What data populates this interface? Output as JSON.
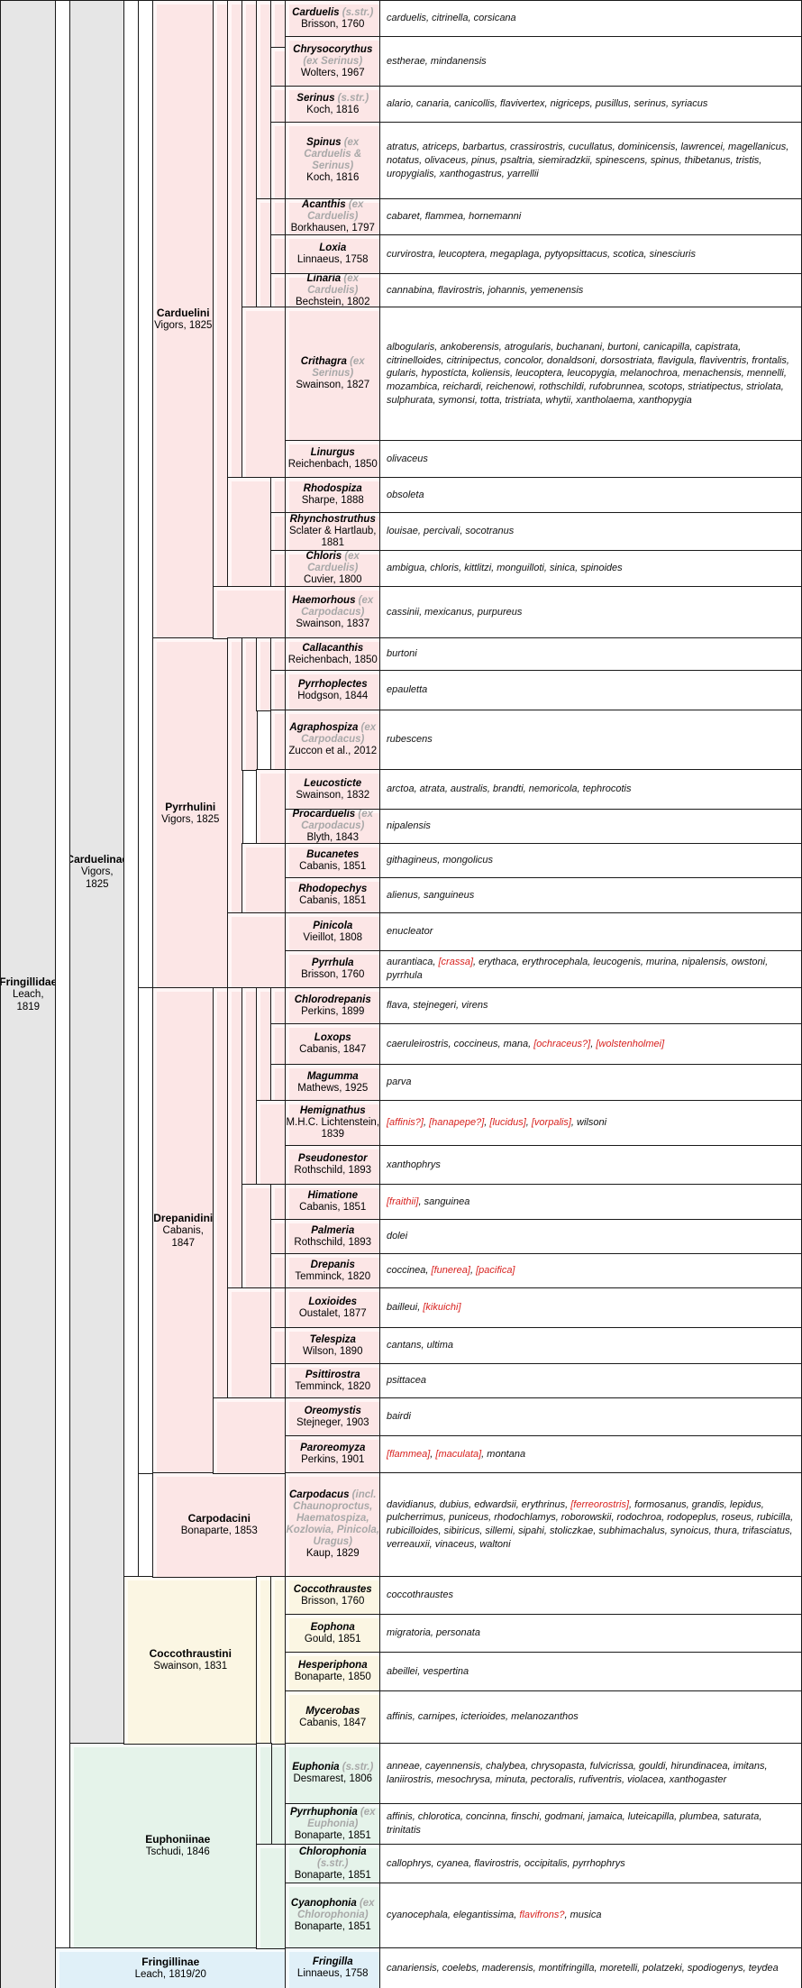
{
  "ranks": {
    "family": {
      "name": "Fringillidae",
      "authority": "Leach, 1819"
    },
    "subfamilies": [
      {
        "key": "carduelinae",
        "name": "Carduelinae",
        "authority": "Vigors, 1825"
      },
      {
        "key": "euphoniinae",
        "name": "Euphoniinae",
        "authority": "Tschudi, 1846"
      },
      {
        "key": "fringillinae",
        "name": "Fringillinae",
        "authority": "Leach, 1819/20"
      }
    ],
    "tribes": [
      {
        "key": "carduelini",
        "name": "Carduelini",
        "authority": "Vigors, 1825"
      },
      {
        "key": "pyrrhulini",
        "name": "Pyrrhulini",
        "authority": "Vigors, 1825"
      },
      {
        "key": "drepanidini",
        "name": "Drepanidini",
        "authority": "Cabanis, 1847"
      },
      {
        "key": "carpodacini",
        "name": "Carpodacini",
        "authority": "Bonaparte, 1853"
      },
      {
        "key": "coccothraustini",
        "name": "Coccothraustini",
        "authority": "Swainson, 1831"
      }
    ]
  },
  "genera": [
    {
      "name": "Carduelis",
      "note": "(s.str.)",
      "authority": "Brisson, 1760",
      "species": [
        {
          "text": "carduelis, citrinella, corsicana"
        }
      ]
    },
    {
      "name": "Chrysocorythus",
      "note": "(ex Serinus)",
      "authority": "Wolters, 1967",
      "species": [
        {
          "text": "estherae, mindanensis"
        }
      ]
    },
    {
      "name": "Serinus",
      "note": "(s.str.)",
      "authority": "Koch, 1816",
      "species": [
        {
          "text": "alario, canaria, canicollis, flavivertex, nigriceps, pusillus, serinus, syriacus"
        }
      ]
    },
    {
      "name": "Spinus",
      "note": "(ex Carduelis & Serinus)",
      "authority": "Koch, 1816",
      "species": [
        {
          "text": "atratus, atriceps, barbartus, crassirostris, cucullatus, dominicensis, lawrencei, magellanicus, notatus, olivaceus, pinus, psaltria, siemiradzkii, spinescens, spinus, thibetanus, tristis, uropygialis, xanthogastrus, yarrellii"
        }
      ]
    },
    {
      "name": "Acanthis",
      "note": "(ex Carduelis)",
      "authority": "Borkhausen, 1797",
      "species": [
        {
          "text": "cabaret, flammea, hornemanni"
        }
      ]
    },
    {
      "name": "Loxia",
      "note": "",
      "authority": "Linnaeus, 1758",
      "species": [
        {
          "text": "curvirostra, leucoptera, megaplaga, pytyopsittacus, scotica, sinesciuris"
        }
      ]
    },
    {
      "name": "Linaria",
      "note": "(ex Carduelis)",
      "authority": "Bechstein, 1802",
      "species": [
        {
          "text": "cannabina, flavirostris, johannis, yemenensis"
        }
      ]
    },
    {
      "name": "Crithagra",
      "note": "(ex Serinus)",
      "authority": "Swainson, 1827",
      "species": [
        {
          "text": "albogularis, ankoberensis, atrogularis, buchanani, burtoni, canicapilla, capistrata, citrinelloides, citrinipectus, concolor, donaldsoni, dorsostriata, flavigula, flaviventris, frontalis, gularis, hypostícta, koliensis, leucoptera, leucopygia, melanochroa, menachensis, mennelli, mozambica, reichardi, reichenowi, rothschildi, rufobrunnea, scotops, striatipectus, striolata, sulphurata, symonsi, totta, tristriata, whytii, xantholaema, xanthopygia"
        }
      ]
    },
    {
      "name": "Linurgus",
      "note": "",
      "authority": "Reichenbach, 1850",
      "species": [
        {
          "text": "olivaceus"
        }
      ]
    },
    {
      "name": "Rhodospiza",
      "note": "",
      "authority": "Sharpe, 1888",
      "species": [
        {
          "text": "obsoleta"
        }
      ]
    },
    {
      "name": "Rhynchostruthus",
      "note": "",
      "authority": "Sclater & Hartlaub, 1881",
      "species": [
        {
          "text": "louisae, percivali, socotranus"
        }
      ]
    },
    {
      "name": "Chloris",
      "note": "(ex Carduelis)",
      "authority": "Cuvier, 1800",
      "species": [
        {
          "text": "ambigua, chloris, kittlitzi, monguilloti, sinica, spinoides"
        }
      ]
    },
    {
      "name": "Haemorhous",
      "note": "(ex Carpodacus)",
      "authority": "Swainson, 1837",
      "species": [
        {
          "text": "cassinii, mexicanus, purpureus"
        }
      ]
    },
    {
      "name": "Callacanthis",
      "note": "",
      "authority": "Reichenbach, 1850",
      "species": [
        {
          "text": "burtoni"
        }
      ]
    },
    {
      "name": "Pyrrhoplectes",
      "note": "",
      "authority": "Hodgson, 1844",
      "species": [
        {
          "text": "epauletta"
        }
      ]
    },
    {
      "name": "Agraphospiza",
      "note": "(ex Carpodacus)",
      "authority": "Zuccon et al., 2012",
      "species": [
        {
          "text": "rubescens"
        }
      ]
    },
    {
      "name": "Leucosticte",
      "note": "",
      "authority": "Swainson, 1832",
      "species": [
        {
          "text": "arctoa, atrata, australis, brandti, nemoricola, tephrocotis"
        }
      ]
    },
    {
      "name": "Procarduelis",
      "note": "(ex Carpodacus)",
      "authority": "Blyth, 1843",
      "species": [
        {
          "text": "nipalensis"
        }
      ]
    },
    {
      "name": "Bucanetes",
      "note": "",
      "authority": "Cabanis, 1851",
      "species": [
        {
          "text": "githagineus, mongolicus"
        }
      ]
    },
    {
      "name": "Rhodopechys",
      "note": "",
      "authority": "Cabanis, 1851",
      "species": [
        {
          "text": "alienus, sanguineus"
        }
      ]
    },
    {
      "name": "Pinicola",
      "note": "",
      "authority": "Vieillot, 1808",
      "species": [
        {
          "text": "enucleator"
        }
      ]
    },
    {
      "name": "Pyrrhula",
      "note": "",
      "authority": "Brisson, 1760",
      "species": [
        {
          "text": "aurantiaca, "
        },
        {
          "text": "[crassa]",
          "extinct": true
        },
        {
          "text": ", erythaca, erythrocephala, leucogenis, murina, nipalensis, owstoni, pyrrhula"
        }
      ]
    },
    {
      "name": "Chlorodrepanis",
      "note": "",
      "authority": "Perkins, 1899",
      "species": [
        {
          "text": "flava, stejnegeri, virens"
        }
      ]
    },
    {
      "name": "Loxops",
      "note": "",
      "authority": "Cabanis, 1847",
      "species": [
        {
          "text": "caeruleirostris, coccineus, mana, "
        },
        {
          "text": "[ochraceus?]",
          "extinct": true
        },
        {
          "text": ", "
        },
        {
          "text": "[wolstenholmei]",
          "extinct": true
        }
      ]
    },
    {
      "name": "Magumma",
      "note": "",
      "authority": "Mathews, 1925",
      "species": [
        {
          "text": "parva"
        }
      ]
    },
    {
      "name": "Hemignathus",
      "note": "",
      "authority": "M.H.C. Lichtenstein, 1839",
      "species": [
        {
          "text": "[affinis?]",
          "extinct": true
        },
        {
          "text": ", "
        },
        {
          "text": "[hanapepe?]",
          "extinct": true
        },
        {
          "text": ", "
        },
        {
          "text": "[lucidus]",
          "extinct": true
        },
        {
          "text": ", "
        },
        {
          "text": "[vorpalis]",
          "extinct": true
        },
        {
          "text": ", wilsoni"
        }
      ]
    },
    {
      "name": "Pseudonestor",
      "note": "",
      "authority": "Rothschild, 1893",
      "species": [
        {
          "text": "xanthophrys"
        }
      ]
    },
    {
      "name": "Himatione",
      "note": "",
      "authority": "Cabanis, 1851",
      "species": [
        {
          "text": "[fraithii]",
          "extinct": true
        },
        {
          "text": ", sanguinea"
        }
      ]
    },
    {
      "name": "Palmeria",
      "note": "",
      "authority": "Rothschild, 1893",
      "species": [
        {
          "text": "dolei"
        }
      ]
    },
    {
      "name": "Drepanis",
      "note": "",
      "authority": "Temminck, 1820",
      "species": [
        {
          "text": "coccinea, "
        },
        {
          "text": "[funerea]",
          "extinct": true
        },
        {
          "text": ", "
        },
        {
          "text": "[pacifica]",
          "extinct": true
        }
      ]
    },
    {
      "name": "Loxioides",
      "note": "",
      "authority": "Oustalet, 1877",
      "species": [
        {
          "text": "bailleui, "
        },
        {
          "text": "[kikuichi]",
          "extinct": true
        }
      ]
    },
    {
      "name": "Telespiza",
      "note": "",
      "authority": "Wilson, 1890",
      "species": [
        {
          "text": "cantans, ultima"
        }
      ]
    },
    {
      "name": "Psittirostra",
      "note": "",
      "authority": "Temminck, 1820",
      "species": [
        {
          "text": "psittacea"
        }
      ]
    },
    {
      "name": "Oreomystis",
      "note": "",
      "authority": "Stejneger, 1903",
      "species": [
        {
          "text": "bairdi"
        }
      ]
    },
    {
      "name": "Paroreomyza",
      "note": "",
      "authority": "Perkins, 1901",
      "species": [
        {
          "text": "[flammea]",
          "extinct": true
        },
        {
          "text": ", "
        },
        {
          "text": "[maculata]",
          "extinct": true
        },
        {
          "text": ", montana"
        }
      ]
    },
    {
      "name": "Carpodacus",
      "note": "(incl. Chaunoproctus, Haematospiza, Kozlowia, Pinicola, Uragus)",
      "authority": "Kaup, 1829",
      "species": [
        {
          "text": "davidianus, dubius, edwardsii, erythrinus, "
        },
        {
          "text": "[ferreorostris]",
          "extinct": true
        },
        {
          "text": ", formosanus, grandis, lepidus, pulcherrimus, puniceus, rhodochlamys, roborowskii, rodochroa, rodopeplus, roseus, rubicilla, rubicilloides, sibiricus, sillemi, sipahi, stoliczkae, subhimachalus, synoicus, thura, trifasciatus, verreauxii, vinaceus, waltoni"
        }
      ]
    },
    {
      "name": "Coccothraustes",
      "note": "",
      "authority": "Brisson, 1760",
      "species": [
        {
          "text": "coccothraustes"
        }
      ]
    },
    {
      "name": "Eophona",
      "note": "",
      "authority": "Gould, 1851",
      "species": [
        {
          "text": "migratoria, personata"
        }
      ]
    },
    {
      "name": "Hesperiphona",
      "note": "",
      "authority": "Bonaparte, 1850",
      "species": [
        {
          "text": "abeillei, vespertina"
        }
      ]
    },
    {
      "name": "Mycerobas",
      "note": "",
      "authority": "Cabanis, 1847",
      "species": [
        {
          "text": "affinis, carnipes, icterioides, melanozanthos"
        }
      ]
    },
    {
      "name": "Euphonia",
      "note": "(s.str.)",
      "authority": "Desmarest, 1806",
      "species": [
        {
          "text": "anneae, cayennensis, chalybea, chrysopasta, fulvicrissa, gouldi, hirundinacea, imitans, laniirostris, mesochrysa, minuta, pectoralis, rufiventris, violacea, xanthogaster"
        }
      ]
    },
    {
      "name": "Pyrrhuphonia",
      "note": "(ex Euphonia)",
      "authority": "Bonaparte, 1851",
      "species": [
        {
          "text": "affinis, chlorotica, concinna, finschi, godmani, jamaica, luteicapilla, plumbea, saturata, trinitatis"
        }
      ]
    },
    {
      "name": "Chlorophonia",
      "note": "(s.str.)",
      "authority": "Bonaparte, 1851",
      "species": [
        {
          "text": "callophrys, cyanea, flavirostris, occipitalis, pyrrhophrys"
        }
      ]
    },
    {
      "name": "Cyanophonia",
      "note": "(ex Chlorophonia)",
      "authority": "Bonaparte, 1851",
      "species": [
        {
          "text": "cyanocephala, elegantissima, "
        },
        {
          "text": "flavifrons?",
          "extinct": true
        },
        {
          "text": ", musica"
        }
      ]
    },
    {
      "name": "Fringilla",
      "note": "",
      "authority": "Linnaeus, 1758",
      "species": [
        {
          "text": "canariensis, coelebs, maderensis, montifringilla, moretelli, polatzeki, spodiogenys, teydea"
        }
      ]
    }
  ]
}
